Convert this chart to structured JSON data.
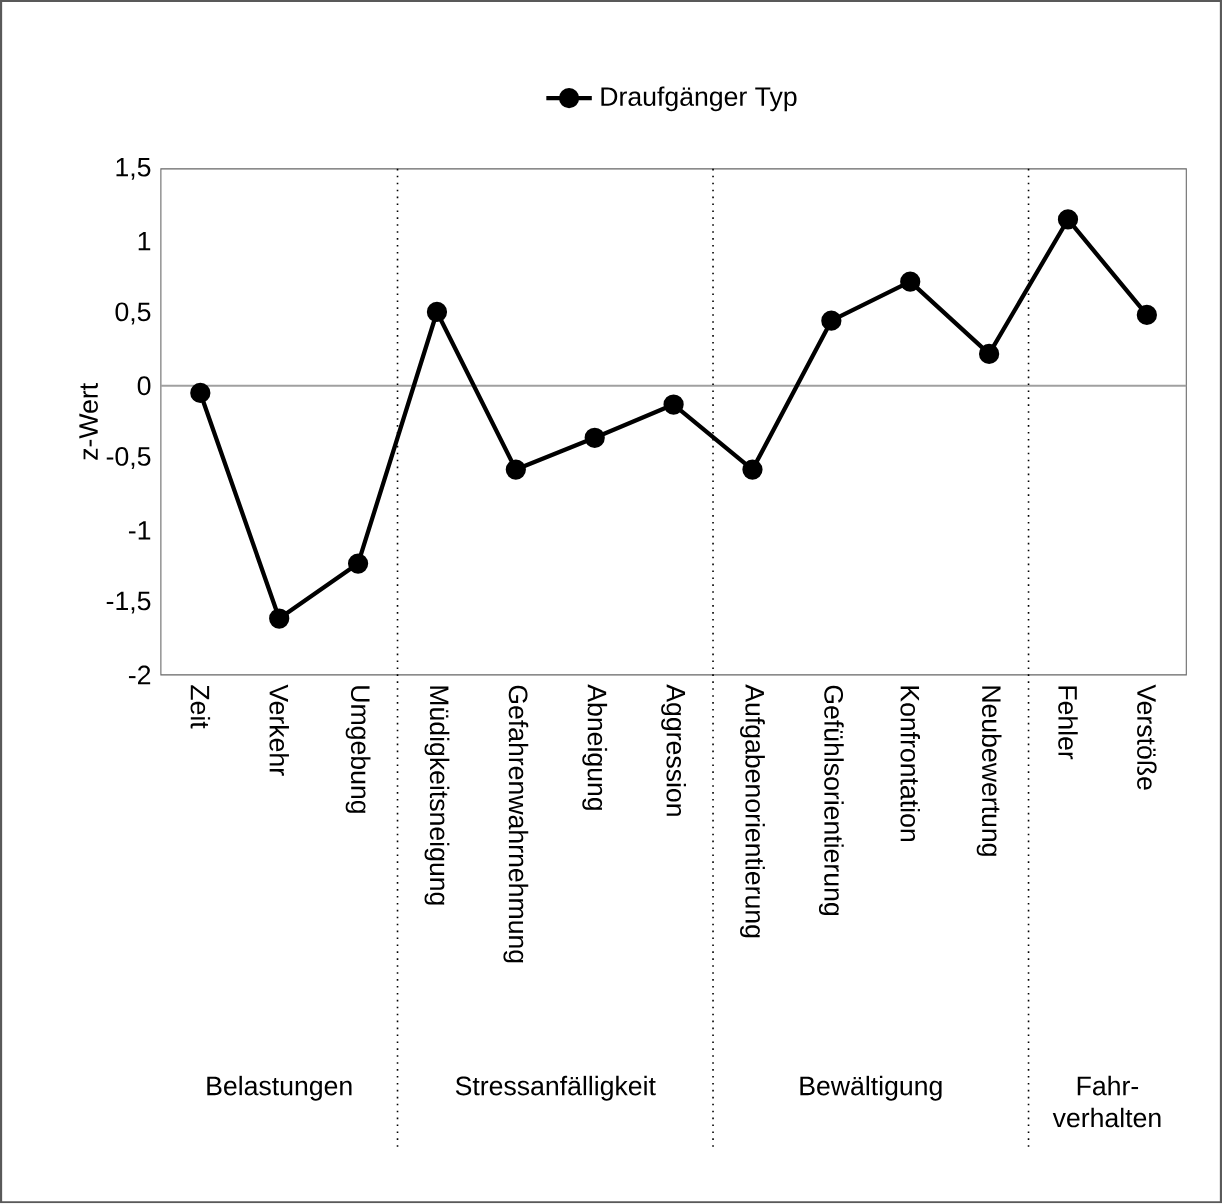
{
  "chart_data": {
    "type": "line",
    "ylabel": "z-Wert",
    "categories": [
      "Zeit",
      "Verkehr",
      "Umgebung",
      "Müdigkeitsneigung",
      "Gefahrenwahrnehmung",
      "Abneigung",
      "Aggression",
      "Aufgabenorientierung",
      "Gefühlsorientierung",
      "Konfrontation",
      "Neubewertung",
      "Fehler",
      "Verstöße"
    ],
    "series": [
      {
        "name": "Draufgänger Typ",
        "color": "#000000",
        "values": [
          -0.05,
          -1.61,
          -1.23,
          0.51,
          -0.58,
          -0.36,
          -0.13,
          -0.58,
          0.45,
          0.72,
          0.22,
          1.15,
          0.49
        ]
      }
    ],
    "ylim": [
      -2,
      1.5
    ],
    "yticks": [
      {
        "value": -2,
        "label": "-2"
      },
      {
        "value": -1.5,
        "label": "-1,5"
      },
      {
        "value": -1,
        "label": "-1"
      },
      {
        "value": -0.5,
        "label": "-0,5"
      },
      {
        "value": 0,
        "label": "0"
      },
      {
        "value": 0.5,
        "label": "0,5"
      },
      {
        "value": 1,
        "label": "1"
      },
      {
        "value": 1.5,
        "label": "1,5"
      }
    ],
    "ref_lines": [
      {
        "axis": "y",
        "value": 0,
        "color": "#a0a0a0",
        "line_style": "solid"
      }
    ],
    "annotations": [
      "Belastungen",
      "Stressanfälligkeit",
      "Bewältigung",
      "Fahr-verhalten"
    ],
    "legend": "top",
    "marker": "circle",
    "line_style": "solid",
    "grid": false
  }
}
